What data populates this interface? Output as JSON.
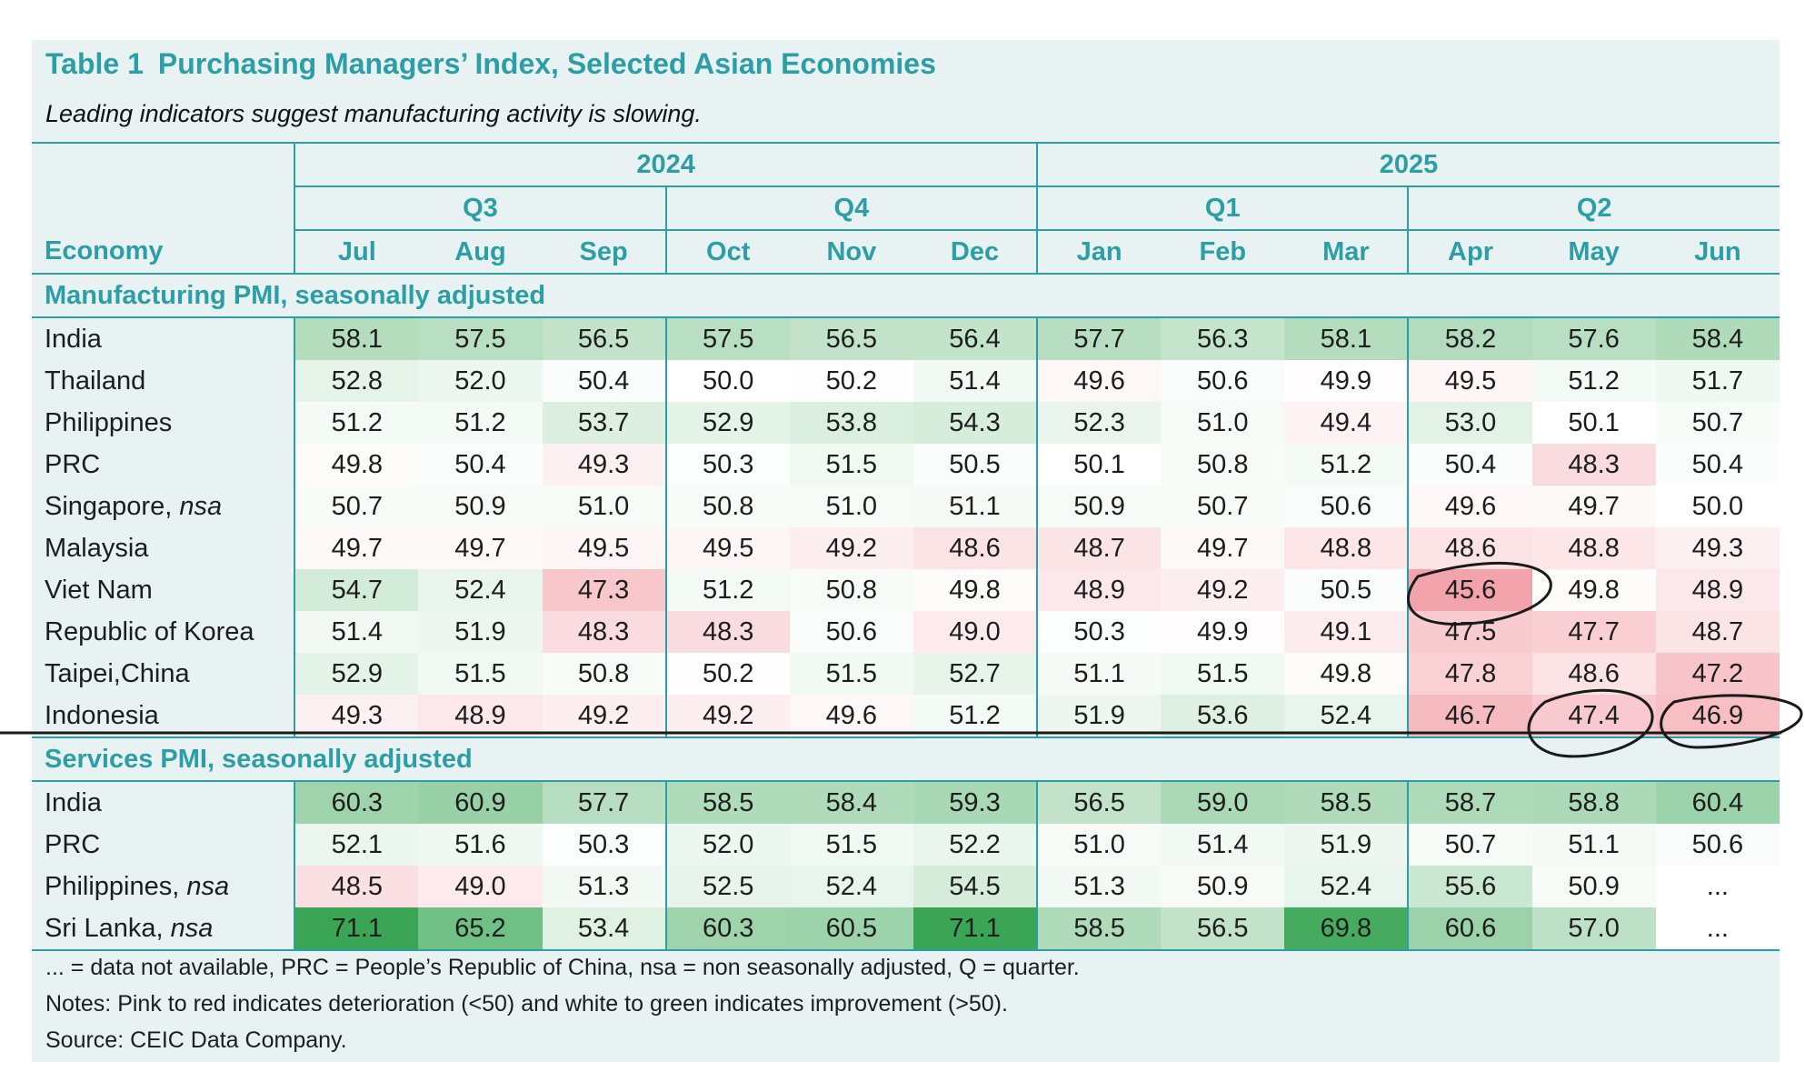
{
  "title_label": "Table 1",
  "title_text": "Purchasing Managers’ Index, Selected Asian Economies",
  "subtitle": "Leading indicators suggest manufacturing activity is slowing.",
  "years": [
    "2024",
    "2025"
  ],
  "quarters": [
    "Q3",
    "Q4",
    "Q1",
    "Q2"
  ],
  "economy_header": "Economy",
  "months": [
    "Jul",
    "Aug",
    "Sep",
    "Oct",
    "Nov",
    "Dec",
    "Jan",
    "Feb",
    "Mar",
    "Apr",
    "May",
    "Jun"
  ],
  "sections": [
    {
      "title": "Manufacturing PMI, seasonally adjusted",
      "rows": [
        {
          "economy": "India",
          "qualifier": "",
          "values": [
            "58.1",
            "57.5",
            "56.5",
            "57.5",
            "56.5",
            "56.4",
            "57.7",
            "56.3",
            "58.1",
            "58.2",
            "57.6",
            "58.4"
          ]
        },
        {
          "economy": "Thailand",
          "qualifier": "",
          "values": [
            "52.8",
            "52.0",
            "50.4",
            "50.0",
            "50.2",
            "51.4",
            "49.6",
            "50.6",
            "49.9",
            "49.5",
            "51.2",
            "51.7"
          ]
        },
        {
          "economy": "Philippines",
          "qualifier": "",
          "values": [
            "51.2",
            "51.2",
            "53.7",
            "52.9",
            "53.8",
            "54.3",
            "52.3",
            "51.0",
            "49.4",
            "53.0",
            "50.1",
            "50.7"
          ]
        },
        {
          "economy": "PRC",
          "qualifier": "",
          "values": [
            "49.8",
            "50.4",
            "49.3",
            "50.3",
            "51.5",
            "50.5",
            "50.1",
            "50.8",
            "51.2",
            "50.4",
            "48.3",
            "50.4"
          ]
        },
        {
          "economy": "Singapore, ",
          "qualifier": "nsa",
          "values": [
            "50.7",
            "50.9",
            "51.0",
            "50.8",
            "51.0",
            "51.1",
            "50.9",
            "50.7",
            "50.6",
            "49.6",
            "49.7",
            "50.0"
          ]
        },
        {
          "economy": "Malaysia",
          "qualifier": "",
          "values": [
            "49.7",
            "49.7",
            "49.5",
            "49.5",
            "49.2",
            "48.6",
            "48.7",
            "49.7",
            "48.8",
            "48.6",
            "48.8",
            "49.3"
          ]
        },
        {
          "economy": "Viet Nam",
          "qualifier": "",
          "values": [
            "54.7",
            "52.4",
            "47.3",
            "51.2",
            "50.8",
            "49.8",
            "48.9",
            "49.2",
            "50.5",
            "45.6",
            "49.8",
            "48.9"
          ]
        },
        {
          "economy": "Republic of Korea",
          "qualifier": "",
          "values": [
            "51.4",
            "51.9",
            "48.3",
            "48.3",
            "50.6",
            "49.0",
            "50.3",
            "49.9",
            "49.1",
            "47.5",
            "47.7",
            "48.7"
          ]
        },
        {
          "economy": "Taipei,China",
          "qualifier": "",
          "values": [
            "52.9",
            "51.5",
            "50.8",
            "50.2",
            "51.5",
            "52.7",
            "51.1",
            "51.5",
            "49.8",
            "47.8",
            "48.6",
            "47.2"
          ]
        },
        {
          "economy": "Indonesia",
          "qualifier": "",
          "values": [
            "49.3",
            "48.9",
            "49.2",
            "49.2",
            "49.6",
            "51.2",
            "51.9",
            "53.6",
            "52.4",
            "46.7",
            "47.4",
            "46.9"
          ]
        }
      ]
    },
    {
      "title": "Services PMI, seasonally adjusted",
      "rows": [
        {
          "economy": "India",
          "qualifier": "",
          "values": [
            "60.3",
            "60.9",
            "57.7",
            "58.5",
            "58.4",
            "59.3",
            "56.5",
            "59.0",
            "58.5",
            "58.7",
            "58.8",
            "60.4"
          ]
        },
        {
          "economy": "PRC",
          "qualifier": "",
          "values": [
            "52.1",
            "51.6",
            "50.3",
            "52.0",
            "51.5",
            "52.2",
            "51.0",
            "51.4",
            "51.9",
            "50.7",
            "51.1",
            "50.6"
          ]
        },
        {
          "economy": "Philippines, ",
          "qualifier": "nsa",
          "values": [
            "48.5",
            "49.0",
            "51.3",
            "52.5",
            "52.4",
            "54.5",
            "51.3",
            "50.9",
            "52.4",
            "55.6",
            "50.9",
            "..."
          ]
        },
        {
          "economy": "Sri Lanka, ",
          "qualifier": "nsa",
          "values": [
            "71.1",
            "65.2",
            "53.4",
            "60.3",
            "60.5",
            "71.1",
            "58.5",
            "56.5",
            "69.8",
            "60.6",
            "57.0",
            "..."
          ]
        }
      ]
    }
  ],
  "notes": [
    "... = data not available, PRC = People’s Republic of China, nsa = non seasonally adjusted, Q = quarter.",
    "Notes: Pink to red indicates deterioration (<50) and white to green indicates improvement (>50).",
    "Source: CEIC Data Company."
  ],
  "colors": {
    "accent": "#2b9ea6",
    "panel": "#e8f2f3",
    "improve_max": "#3aa655",
    "deteriorate_max": "#f08c97"
  }
}
